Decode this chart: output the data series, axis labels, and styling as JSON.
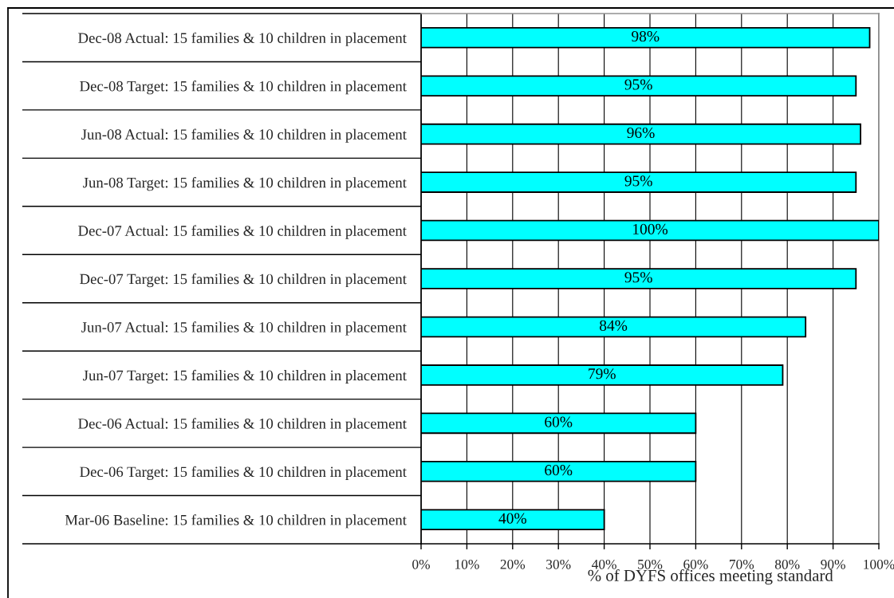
{
  "chart_data": {
    "type": "bar",
    "orientation": "horizontal",
    "categories": [
      "Dec-08 Actual: 15 families & 10 children in placement",
      "Dec-08 Target: 15 families & 10 children in placement",
      "Jun-08 Actual: 15 families & 10 children in placement",
      "Jun-08 Target: 15 families & 10 children in placement",
      "Dec-07 Actual: 15 families & 10 children in placement",
      "Dec-07 Target: 15 families & 10 children in placement",
      "Jun-07 Actual: 15 families & 10 children in placement",
      "Jun-07 Target: 15 families & 10 children in placement",
      "Dec-06 Actual: 15 families & 10 children in placement",
      "Dec-06 Target: 15 families & 10 children in placement",
      "Mar-06 Baseline: 15 families & 10 children in placement"
    ],
    "color": "#00ffff",
    "values": [
      98,
      95,
      96,
      95,
      100,
      95,
      84,
      79,
      60,
      60,
      40
    ],
    "value_labels": [
      "98%",
      "95%",
      "96%",
      "95%",
      "100%",
      "95%",
      "84%",
      "79%",
      "60%",
      "60%",
      "40%"
    ],
    "xlim": [
      0,
      100
    ],
    "xticks": [
      {
        "value": 0,
        "label": "0%"
      },
      {
        "value": 10,
        "label": "10%"
      },
      {
        "value": 20,
        "label": "20%"
      },
      {
        "value": 30,
        "label": "30%"
      },
      {
        "value": 40,
        "label": "40%"
      },
      {
        "value": 50,
        "label": "50%"
      },
      {
        "value": 60,
        "label": "60%"
      },
      {
        "value": 70,
        "label": "70%"
      },
      {
        "value": 80,
        "label": "80%"
      },
      {
        "value": 90,
        "label": "90%"
      },
      {
        "value": 100,
        "label": "100%"
      }
    ],
    "xlabel": "% of DYFS offices meeting standard",
    "grid": "x"
  }
}
